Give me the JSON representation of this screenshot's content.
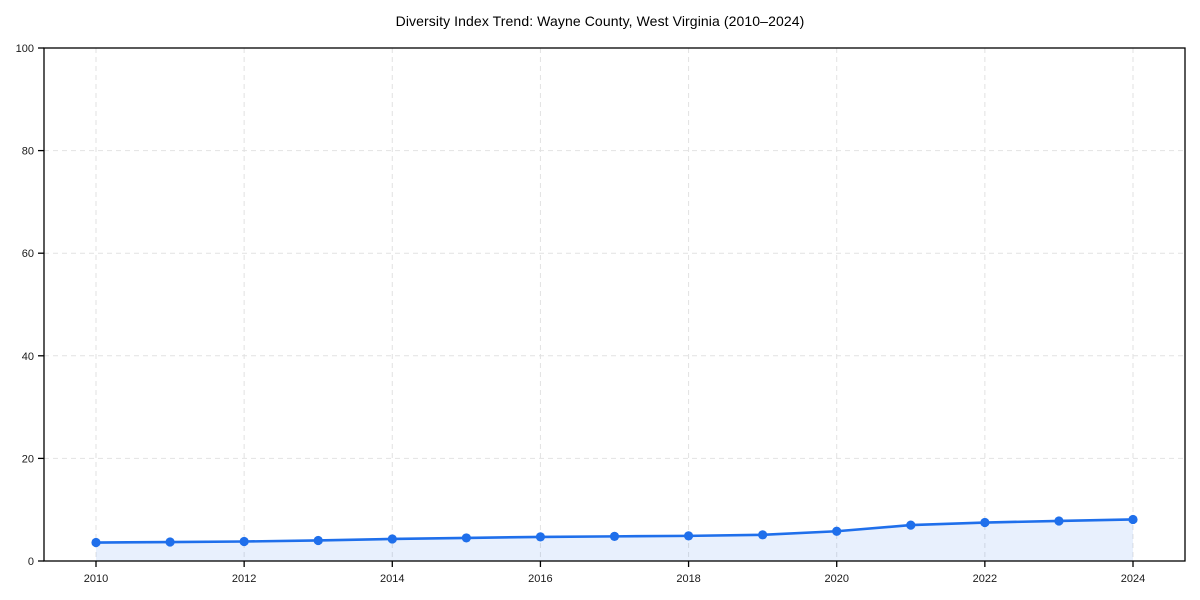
{
  "chart_data": {
    "type": "area",
    "title": "Diversity Index Trend: Wayne County, West Virginia (2010–2024)",
    "series_name": "Diversity Index",
    "x": [
      2010,
      2011,
      2012,
      2013,
      2014,
      2015,
      2016,
      2017,
      2018,
      2019,
      2020,
      2021,
      2022,
      2023,
      2024
    ],
    "values": [
      3.6,
      3.7,
      3.8,
      4.0,
      4.3,
      4.5,
      4.7,
      4.8,
      4.9,
      5.1,
      5.8,
      7.0,
      7.5,
      7.8,
      8.1
    ],
    "xlabel": "",
    "ylabel": "",
    "xlim": [
      2009.3,
      2024.7
    ],
    "ylim": [
      0,
      100
    ],
    "yticks": [
      0,
      20,
      40,
      60,
      80,
      100
    ],
    "xticks": [
      2010,
      2012,
      2014,
      2016,
      2018,
      2020,
      2022,
      2024
    ],
    "grid": true,
    "grid_style": "dashed",
    "legend_position": "none",
    "marker": "circle",
    "colors": {
      "line": "#1f6feb",
      "marker": "#1f6feb",
      "fill": "rgba(31,111,235,0.10)",
      "grid": "#e2e2e2",
      "axis": "#000000",
      "tick_label": "#1a1a1a",
      "title": "#000000",
      "background": "#ffffff"
    }
  }
}
